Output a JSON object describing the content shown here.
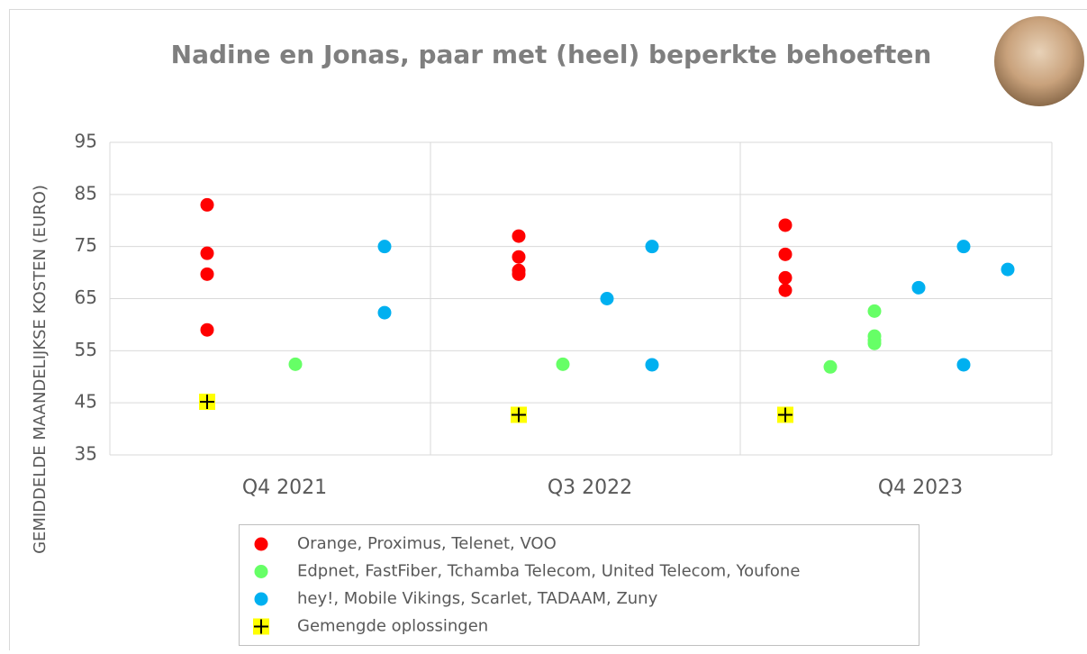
{
  "chart_data": {
    "type": "scatter",
    "title": "Nadine en Jonas, paar met (heel) beperkte behoeften",
    "y_label": "GEMIDDELDE MAANDELIJKSE KOSTEN (EURO)",
    "categories": [
      "Q4 2021",
      "Q3 2022",
      "Q4 2023"
    ],
    "ylim": [
      35,
      95
    ],
    "yticks": [
      35,
      45,
      55,
      65,
      75,
      85,
      95
    ],
    "grid": true,
    "series": [
      {
        "name": "Orange, Proximus, Telenet, VOO",
        "color": "#ff0000",
        "marker": "circle",
        "x": [
          "Q4 2021",
          "Q4 2021",
          "Q4 2021",
          "Q4 2021",
          "Q3 2022",
          "Q3 2022",
          "Q3 2022",
          "Q3 2022",
          "Q4 2023",
          "Q4 2023",
          "Q4 2023",
          "Q4 2023"
        ],
        "values": [
          83,
          73.7,
          69.7,
          59,
          77,
          73,
          70.4,
          69.7,
          79.1,
          73.5,
          69,
          66.6
        ]
      },
      {
        "name": "Edpnet, FastFiber, Tchamba Telecom, United Telecom, Youfone",
        "color": "#66ff66",
        "marker": "circle",
        "x": [
          "Q4 2021",
          "Q3 2022",
          "Q4 2023",
          "Q4 2023",
          "Q4 2023",
          "Q4 2023",
          "Q4 2023"
        ],
        "values": [
          52.4,
          52.4,
          51.9,
          62.6,
          57.8,
          57,
          56.4
        ]
      },
      {
        "name": "hey!, Mobile Vikings, Scarlet, TADAAM, Zuny",
        "color": "#00b0f0",
        "marker": "circle",
        "x": [
          "Q4 2021",
          "Q4 2021",
          "Q3 2022",
          "Q3 2022",
          "Q3 2022",
          "Q4 2023",
          "Q4 2023",
          "Q4 2023",
          "Q4 2023"
        ],
        "values": [
          75,
          62.3,
          65,
          75,
          52.3,
          67.1,
          75,
          52.3,
          70.6
        ]
      },
      {
        "name": "Gemengde oplossingen",
        "color": "#ffff00",
        "marker": "plus",
        "x": [
          "Q4 2021",
          "Q3 2022",
          "Q4 2023"
        ],
        "values": [
          45.2,
          42.7,
          42.7
        ]
      }
    ]
  }
}
